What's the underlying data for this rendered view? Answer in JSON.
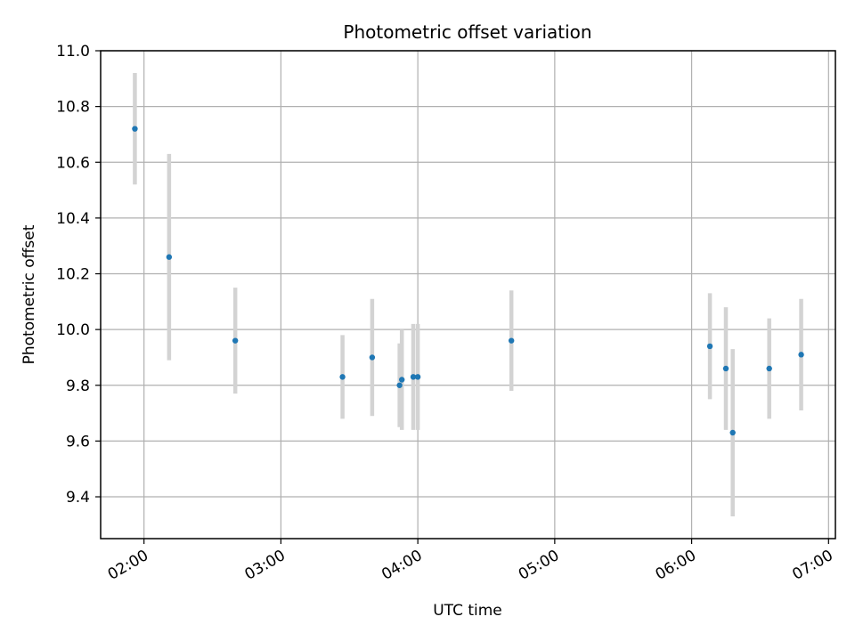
{
  "chart_data": {
    "type": "scatter",
    "title": "Photometric offset variation",
    "xlabel": "UTC time",
    "ylabel": "Photometric offset",
    "xlim": [
      "01:41",
      "07:03"
    ],
    "ylim": [
      9.25,
      11.0
    ],
    "x_ticks": [
      "02:00",
      "03:00",
      "04:00",
      "05:00",
      "06:00",
      "07:00"
    ],
    "y_ticks": [
      "9.4",
      "9.6",
      "9.8",
      "10.0",
      "10.2",
      "10.4",
      "10.6",
      "10.8",
      "11.0"
    ],
    "grid": true,
    "series": [
      {
        "marker_color": "#1f77b4",
        "errorbar_color": "#d3d3d3",
        "points": [
          {
            "time": "01:56",
            "y": 10.72,
            "err": 0.2
          },
          {
            "time": "02:11",
            "y": 10.26,
            "err": 0.37
          },
          {
            "time": "02:40",
            "y": 9.96,
            "err": 0.19
          },
          {
            "time": "03:27",
            "y": 9.83,
            "err": 0.15
          },
          {
            "time": "03:40",
            "y": 9.9,
            "err": 0.21
          },
          {
            "time": "03:52",
            "y": 9.8,
            "err": 0.15
          },
          {
            "time": "03:53",
            "y": 9.82,
            "err": 0.18
          },
          {
            "time": "03:58",
            "y": 9.83,
            "err": 0.19
          },
          {
            "time": "04:00",
            "y": 9.83,
            "err": 0.19
          },
          {
            "time": "04:41",
            "y": 9.96,
            "err": 0.18
          },
          {
            "time": "06:08",
            "y": 9.94,
            "err": 0.19
          },
          {
            "time": "06:15",
            "y": 9.86,
            "err": 0.22
          },
          {
            "time": "06:18",
            "y": 9.63,
            "err": 0.3
          },
          {
            "time": "06:34",
            "y": 9.86,
            "err": 0.18
          },
          {
            "time": "06:48",
            "y": 9.91,
            "err": 0.2
          }
        ]
      }
    ]
  }
}
